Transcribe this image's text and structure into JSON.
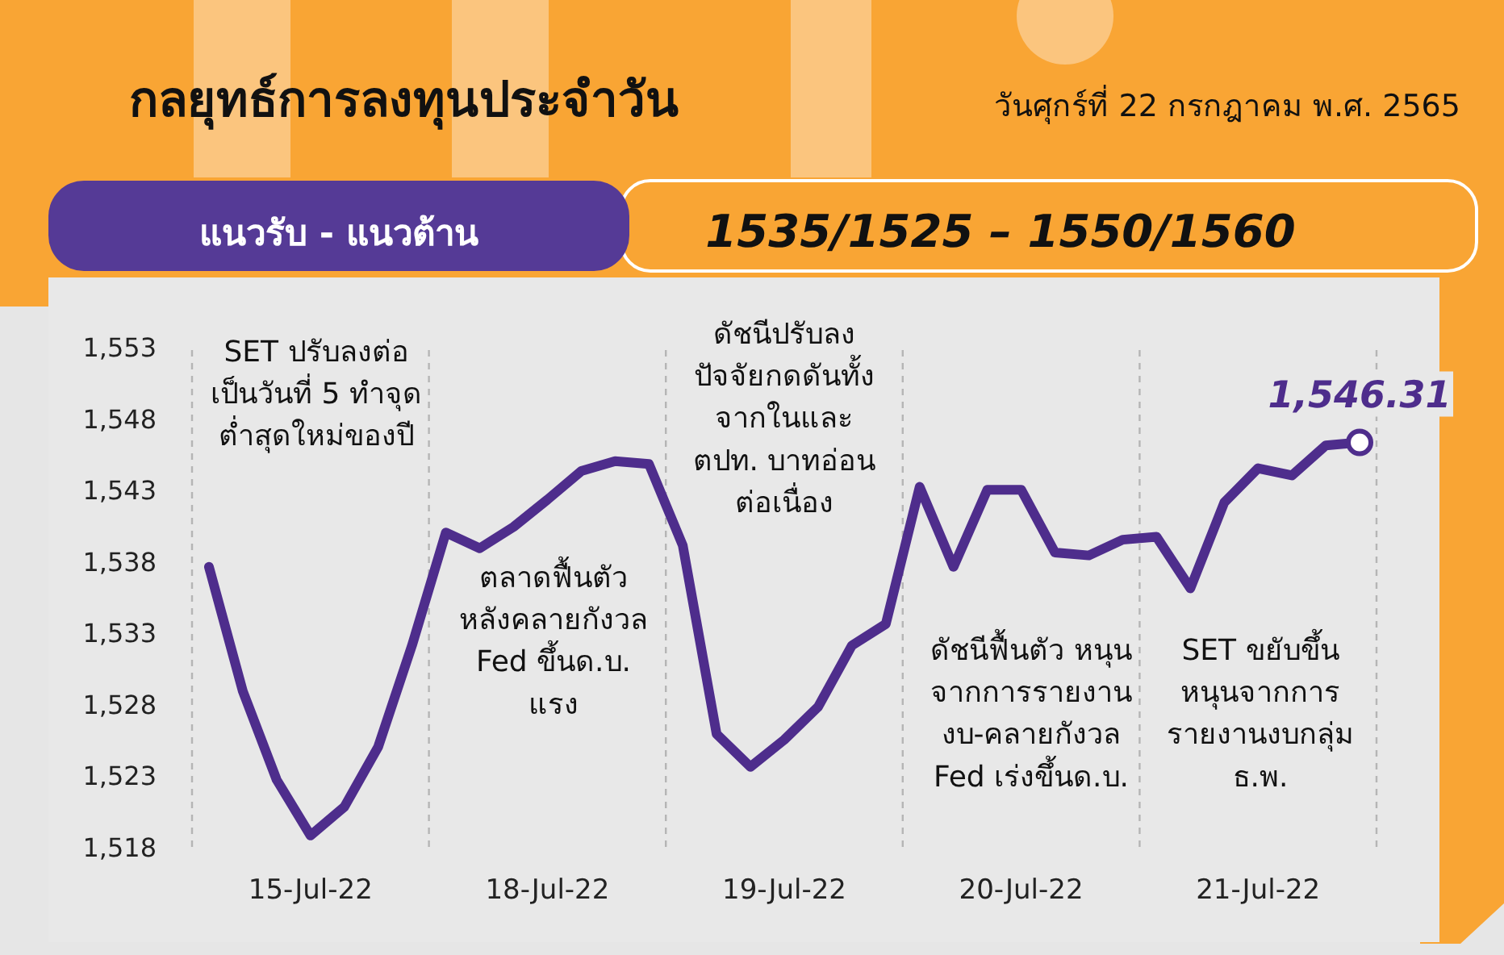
{
  "chart_data": {
    "type": "line",
    "title": "กลยุทธ์การลงทุนประจำวัน",
    "subtitle": "วันศุกร์ที่ 22 กรกฎาคม พ.ศ. 2565",
    "annotations": [
      "แนวรับ - แนวต้าน",
      "1535/1525  –  1550/1560",
      "SET ปรับลงต่อ\nเป็นวันที่ 5 ทำจุด\nต่ำสุดใหม่ของปี",
      "ตลาดฟื้นตัว\nหลังคลายกังวล\nFed ขึ้นด.บ.\nแรง",
      "ดัชนีปรับลง\nปัจจัยกดดันทั้ง\nจากในและ\nตปท. บาทอ่อน\nต่อเนื่อง",
      "ดัชนีฟื้นตัว หนุน\nจากการรายงาน\nงบ-คลายกังวล\nFed เร่งขึ้นด.บ.",
      "SET ขยับขึ้น\nหนุนจากการ\nรายงานงบกลุ่ม\nธ.พ.",
      {
        "text": "1,546.31",
        "y": 1546.31
      }
    ],
    "categories": [
      null,
      null,
      null,
      "15-Jul-22",
      null,
      null,
      null,
      null,
      null,
      null,
      "18-Jul-22",
      null,
      null,
      null,
      null,
      null,
      null,
      "19-Jul-22",
      null,
      null,
      null,
      null,
      null,
      null,
      "20-Jul-22",
      null,
      null,
      null,
      null,
      null,
      null,
      "21-Jul-22",
      null,
      null,
      null
    ],
    "series": [
      {
        "color": "#4e2d8c",
        "values": [
          1537.6,
          1528.9,
          1522.7,
          1518.8,
          1520.8,
          1525.0,
          1532.1,
          1540.0,
          1538.9,
          1540.4,
          1542.3,
          1544.3,
          1545.0,
          1544.8,
          1539.1,
          1525.9,
          1523.6,
          1525.5,
          1527.8,
          1532.1,
          1533.6,
          1543.2,
          1537.6,
          1543.0,
          1543.0,
          1538.6,
          1538.4,
          1539.5,
          1539.7,
          1536.1,
          1542.1,
          1544.5,
          1544.0,
          1546.1,
          1546.31
        ]
      }
    ],
    "ylim": [
      1518,
      1553
    ],
    "yticks": [
      {
        "value": 1518,
        "label": "1,518"
      },
      {
        "value": 1523,
        "label": "1,523"
      },
      {
        "value": 1528,
        "label": "1,528"
      },
      {
        "value": 1533,
        "label": "1,533"
      },
      {
        "value": 1538,
        "label": "1,538"
      },
      {
        "value": 1543,
        "label": "1,543"
      },
      {
        "value": 1548,
        "label": "1,548"
      },
      {
        "value": 1553,
        "label": "1,553"
      }
    ],
    "grid": false,
    "marker": "none",
    "line_style": "solid"
  }
}
